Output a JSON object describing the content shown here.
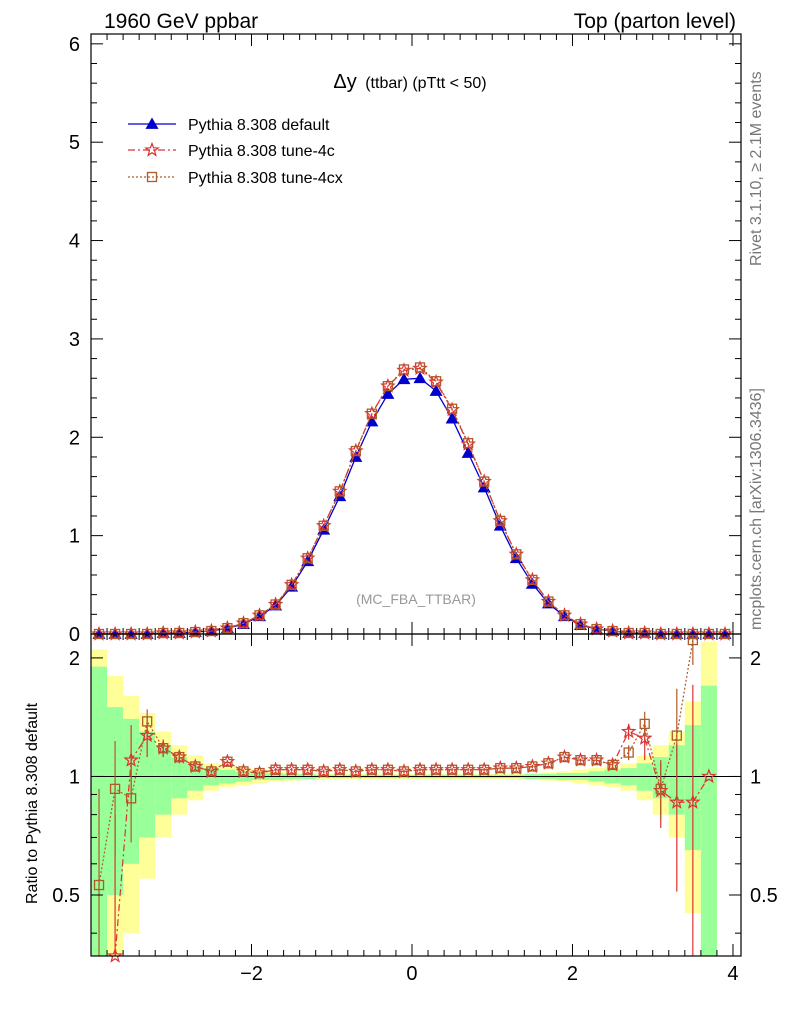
{
  "header": {
    "left": "1960 GeV ppbar",
    "right": "Top (parton level)"
  },
  "side_labels": {
    "rivet": "Rivet 3.1.10, ≥ 2.1M events",
    "mcplots": "mcplots.cern.ch [arXiv:1306.3436]"
  },
  "chart_data": {
    "type": "line",
    "title_main": "Δy",
    "title_detail": "(ttbar) (pTtt < 50)",
    "watermark": "(MC_FBA_TTBAR)",
    "ratio_ylabel": "Ratio to Pythia 8.308 default",
    "xlim": [
      -4,
      4.1
    ],
    "ylim_main": [
      0,
      6.1
    ],
    "ylim_ratio": [
      0.35,
      2.3
    ],
    "xticks": [
      -2,
      0,
      2,
      4
    ],
    "xtick_labels": [
      "−2",
      "0",
      "2",
      "4"
    ],
    "yticks_main": [
      0,
      1,
      2,
      3,
      4,
      5,
      6
    ],
    "ytick_main_labels": [
      "0",
      "1",
      "2",
      "3",
      "4",
      "5",
      "6"
    ],
    "yticks_ratio": [
      0.5,
      1,
      2
    ],
    "ytick_ratio_labels": [
      "0.5",
      "1",
      "2"
    ],
    "legend_position": "top-left",
    "x": [
      -3.9,
      -3.7,
      -3.5,
      -3.3,
      -3.1,
      -2.9,
      -2.7,
      -2.5,
      -2.3,
      -2.1,
      -1.9,
      -1.7,
      -1.5,
      -1.3,
      -1.1,
      -0.9,
      -0.7,
      -0.5,
      -0.3,
      -0.1,
      0.1,
      0.3,
      0.5,
      0.7,
      0.9,
      1.1,
      1.3,
      1.5,
      1.7,
      1.9,
      2.1,
      2.3,
      2.5,
      2.7,
      2.9,
      3.1,
      3.3,
      3.5,
      3.7,
      3.9
    ],
    "series": [
      {
        "name": "Pythia 8.308 default",
        "color": "#0000cc",
        "values": [
          0.0,
          0.0,
          0.0,
          0.0,
          0.01,
          0.01,
          0.02,
          0.03,
          0.06,
          0.1,
          0.18,
          0.29,
          0.48,
          0.74,
          1.06,
          1.4,
          1.8,
          2.16,
          2.44,
          2.59,
          2.6,
          2.47,
          2.19,
          1.84,
          1.49,
          1.1,
          0.77,
          0.51,
          0.31,
          0.18,
          0.09,
          0.05,
          0.03,
          0.01,
          0.01,
          0.0,
          0.0,
          0.0,
          0.0,
          0.0
        ]
      },
      {
        "name": "Pythia 8.308 tune-4c",
        "color": "#e03030",
        "values": [
          0.0,
          0.0,
          0.0,
          0.0,
          0.01,
          0.01,
          0.02,
          0.03,
          0.06,
          0.11,
          0.19,
          0.3,
          0.5,
          0.77,
          1.1,
          1.45,
          1.86,
          2.24,
          2.52,
          2.68,
          2.7,
          2.56,
          2.28,
          1.93,
          1.55,
          1.15,
          0.81,
          0.55,
          0.33,
          0.19,
          0.1,
          0.05,
          0.03,
          0.01,
          0.01,
          0.0,
          0.0,
          0.0,
          0.0,
          0.0
        ]
      },
      {
        "name": "Pythia 8.308 tune-4cx",
        "color": "#b05a28",
        "values": [
          0.0,
          0.0,
          0.0,
          0.0,
          0.01,
          0.01,
          0.02,
          0.03,
          0.06,
          0.11,
          0.19,
          0.3,
          0.5,
          0.77,
          1.1,
          1.45,
          1.86,
          2.24,
          2.52,
          2.69,
          2.71,
          2.57,
          2.29,
          1.94,
          1.55,
          1.15,
          0.81,
          0.55,
          0.33,
          0.19,
          0.1,
          0.05,
          0.03,
          0.01,
          0.01,
          0.0,
          0.0,
          0.0,
          0.0,
          0.0
        ]
      }
    ],
    "ratio_series": [
      {
        "name": "Pythia 8.308 tune-4c",
        "values": [
          null,
          0.3,
          1.1,
          1.27,
          1.18,
          1.12,
          1.06,
          1.03,
          1.09,
          1.03,
          1.02,
          1.04,
          1.04,
          1.04,
          1.03,
          1.04,
          1.03,
          1.04,
          1.04,
          1.03,
          1.04,
          1.04,
          1.04,
          1.04,
          1.04,
          1.05,
          1.05,
          1.06,
          1.08,
          1.12,
          1.1,
          1.1,
          1.07,
          1.3,
          1.25,
          0.92,
          0.86,
          0.86,
          1.0,
          null
        ],
        "errors": [
          null,
          0.5,
          0.25,
          0.15,
          0.06,
          0.04,
          0.02,
          0.01,
          0.01,
          0.01,
          0.01,
          0.01,
          0.01,
          0.01,
          0.01,
          0.01,
          0.01,
          0.01,
          0.01,
          0.01,
          0.01,
          0.01,
          0.01,
          0.01,
          0.01,
          0.01,
          0.01,
          0.01,
          0.01,
          0.01,
          0.01,
          0.02,
          0.03,
          0.06,
          0.15,
          0.18,
          0.35,
          0.85,
          0.0,
          null
        ]
      },
      {
        "name": "Pythia 8.308 tune-4cx",
        "values": [
          0.53,
          0.93,
          0.88,
          1.38,
          1.18,
          1.12,
          1.06,
          1.03,
          1.09,
          1.03,
          1.02,
          1.04,
          1.04,
          1.04,
          1.03,
          1.04,
          1.03,
          1.04,
          1.04,
          1.03,
          1.04,
          1.04,
          1.04,
          1.04,
          1.04,
          1.05,
          1.05,
          1.06,
          1.08,
          1.12,
          1.1,
          1.1,
          1.07,
          1.15,
          1.36,
          0.93,
          1.27,
          2.22,
          null,
          null
        ],
        "errors": [
          0.4,
          0.3,
          0.2,
          0.1,
          0.06,
          0.04,
          0.02,
          0.01,
          0.01,
          0.01,
          0.01,
          0.01,
          0.01,
          0.01,
          0.01,
          0.01,
          0.01,
          0.01,
          0.01,
          0.01,
          0.01,
          0.01,
          0.01,
          0.01,
          0.01,
          0.01,
          0.01,
          0.01,
          0.01,
          0.01,
          0.01,
          0.02,
          0.03,
          0.05,
          0.1,
          0.15,
          0.4,
          0.3,
          null,
          null
        ]
      }
    ],
    "uncertainty_band": {
      "x_edges": [
        -4.0,
        -3.8,
        -3.6,
        -3.4,
        -3.2,
        -3.0,
        -2.8,
        -2.6,
        -2.4,
        -2.2,
        -2.0,
        -1.8,
        -1.6,
        -1.4,
        -1.2,
        -1.0,
        -0.8,
        -0.6,
        -0.4,
        -0.2,
        0.0,
        0.2,
        0.4,
        0.6,
        0.8,
        1.0,
        1.2,
        1.4,
        1.6,
        1.8,
        2.0,
        2.2,
        2.4,
        2.6,
        2.8,
        3.0,
        3.2,
        3.4,
        3.6,
        3.8
      ],
      "inner_halfwidth": [
        0.9,
        0.5,
        0.4,
        0.3,
        0.2,
        0.12,
        0.08,
        0.05,
        0.04,
        0.03,
        0.02,
        0.02,
        0.015,
        0.015,
        0.01,
        0.01,
        0.01,
        0.01,
        0.01,
        0.01,
        0.01,
        0.01,
        0.01,
        0.01,
        0.01,
        0.01,
        0.01,
        0.015,
        0.015,
        0.02,
        0.02,
        0.03,
        0.04,
        0.05,
        0.08,
        0.12,
        0.2,
        0.35,
        0.7
      ],
      "outer_halfwidth": [
        1.1,
        0.8,
        0.6,
        0.45,
        0.3,
        0.2,
        0.13,
        0.08,
        0.06,
        0.05,
        0.04,
        0.03,
        0.025,
        0.02,
        0.02,
        0.015,
        0.015,
        0.015,
        0.015,
        0.015,
        0.015,
        0.015,
        0.015,
        0.015,
        0.015,
        0.015,
        0.02,
        0.02,
        0.025,
        0.03,
        0.04,
        0.05,
        0.06,
        0.08,
        0.13,
        0.2,
        0.3,
        0.55,
        1.2
      ]
    }
  }
}
